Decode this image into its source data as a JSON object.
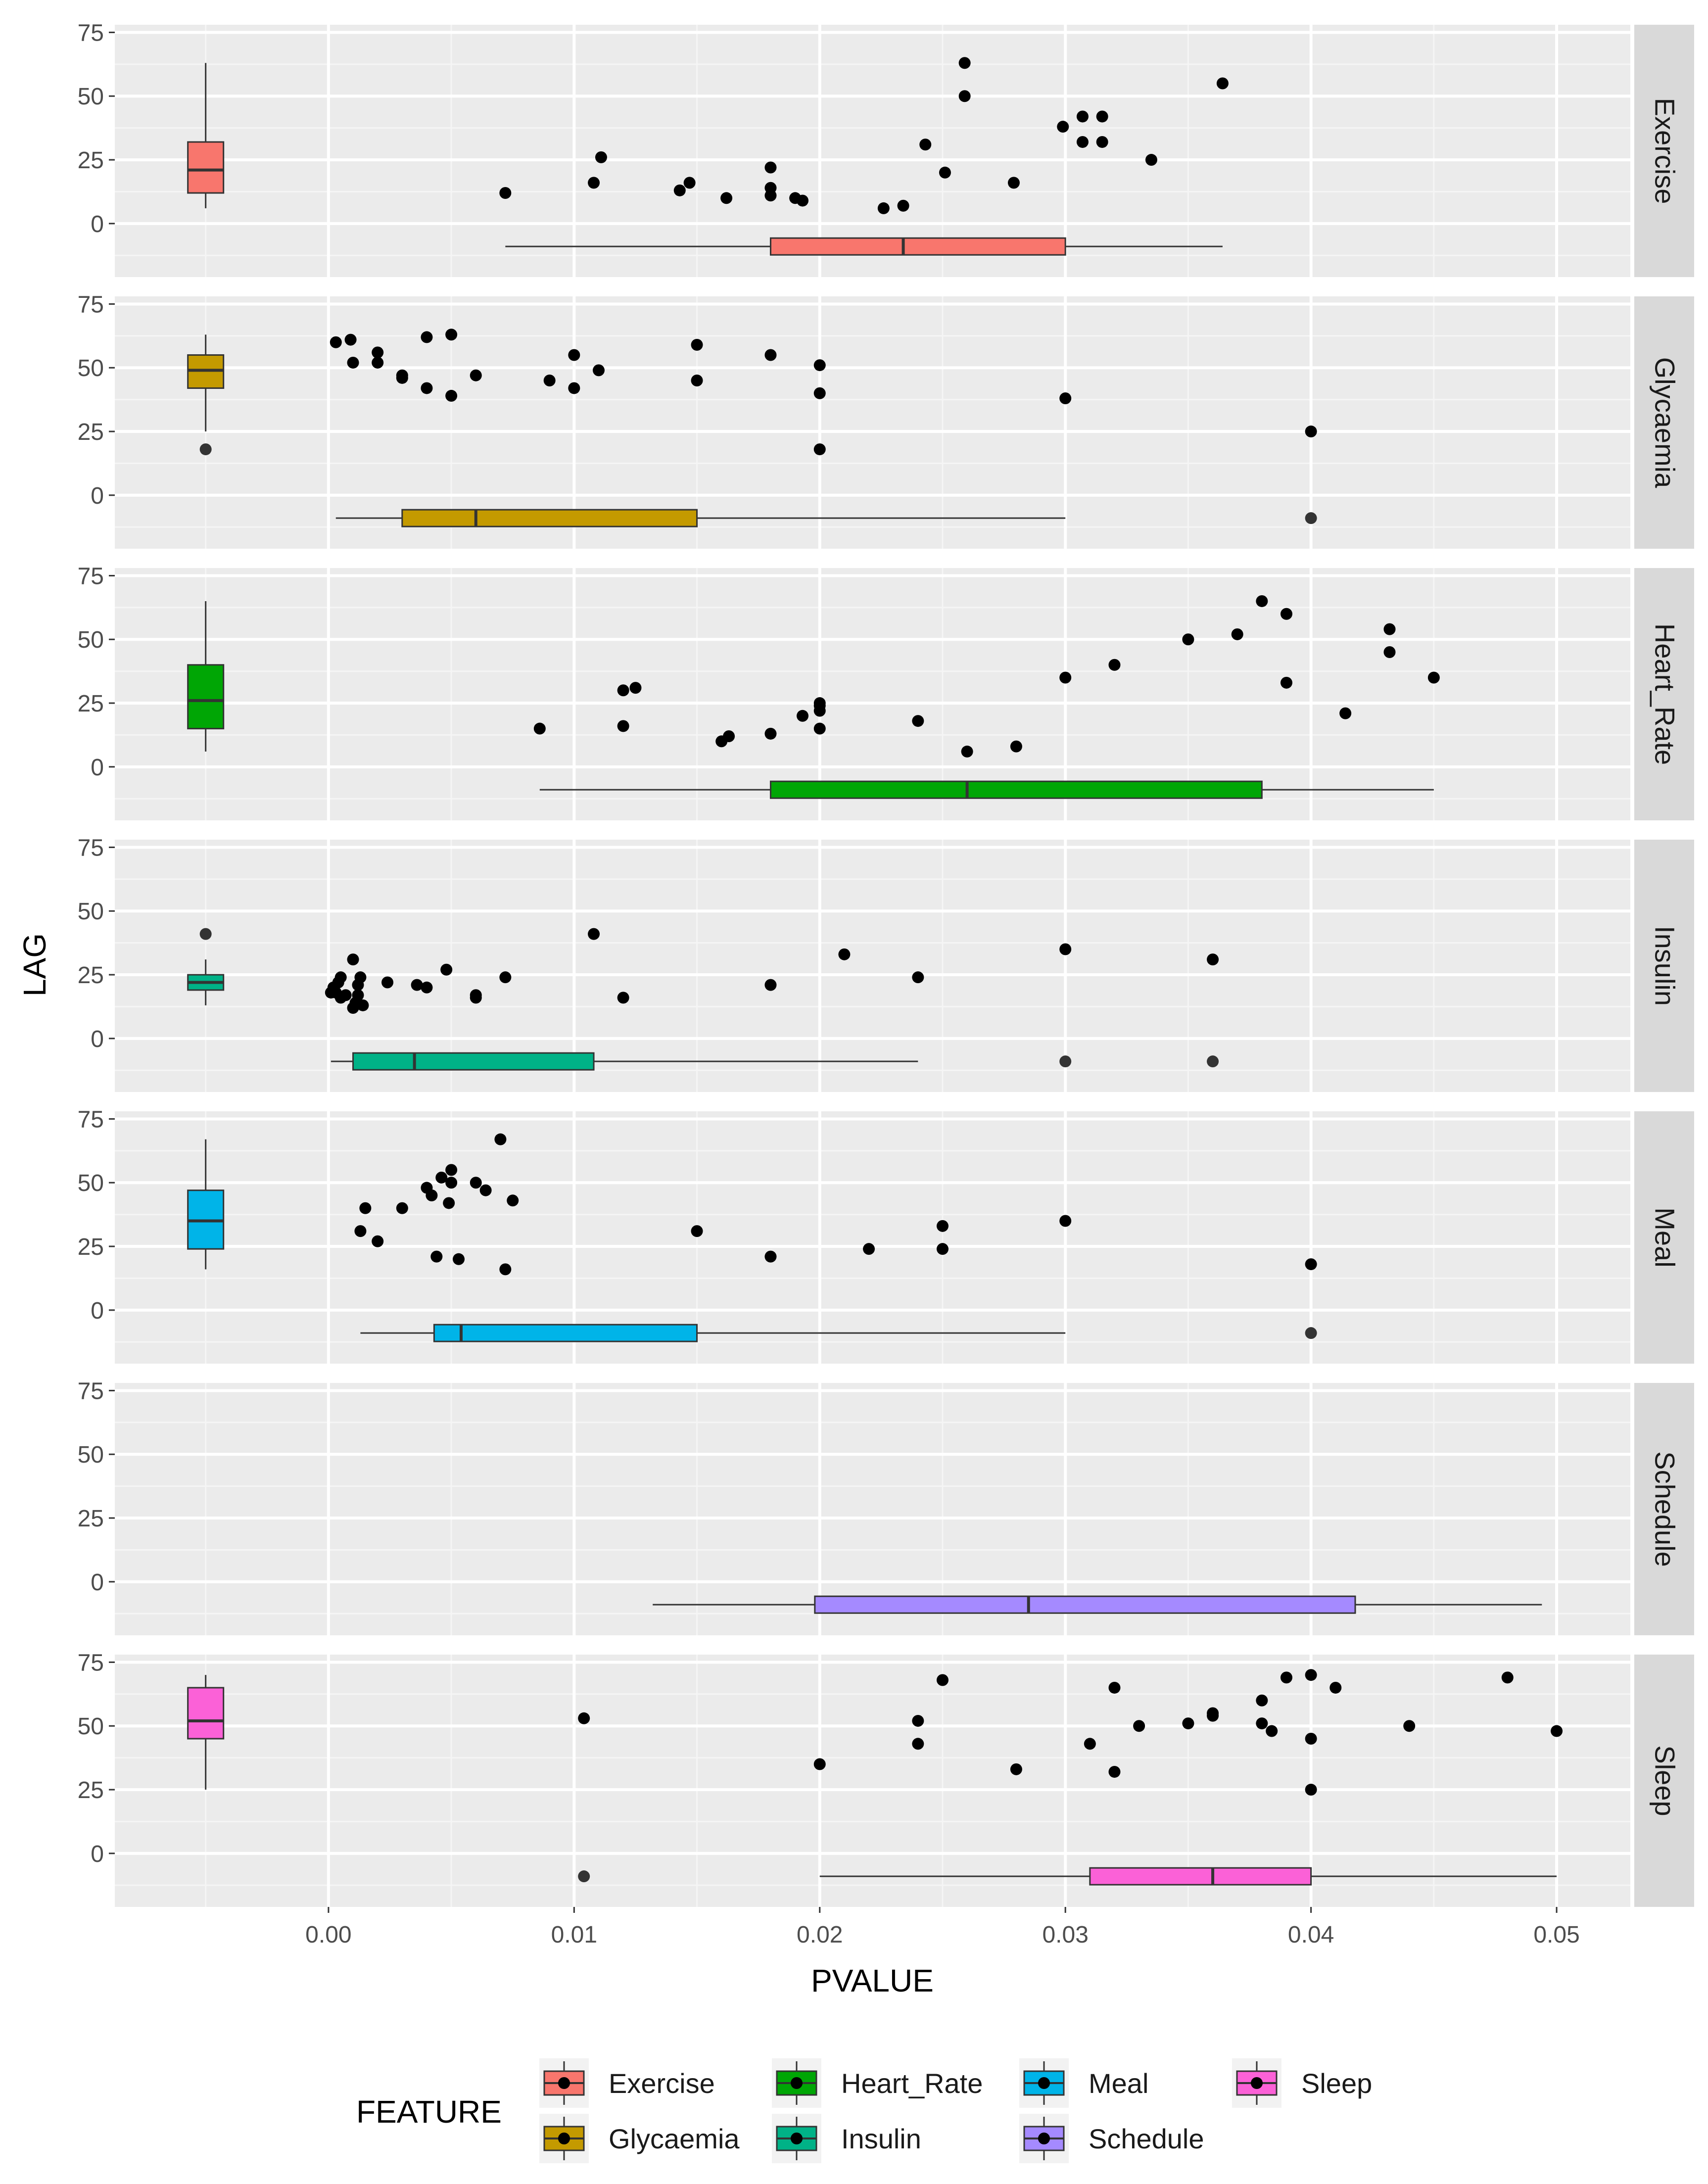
{
  "chart_data": {
    "type": "faceted-boxplot-scatter",
    "x_axis_label": "PVALUE",
    "y_axis_label": "LAG",
    "x_range": [
      -0.0087,
      0.053
    ],
    "x_ticks": [
      "0.00",
      "0.01",
      "0.02",
      "0.03",
      "0.04",
      "0.05"
    ],
    "x_tick_values": [
      0.0,
      0.01,
      0.02,
      0.03,
      0.04,
      0.05
    ],
    "y_range": [
      -21,
      78
    ],
    "y_ticks": [
      "0",
      "25",
      "50",
      "75"
    ],
    "y_tick_values": [
      0,
      25,
      50,
      75
    ],
    "legend_title": "FEATURE",
    "legend_position": "bottom",
    "legend_items": [
      {
        "label": "Exercise",
        "color": "#F8766D"
      },
      {
        "label": "Glycaemia",
        "color": "#C49A00"
      },
      {
        "label": "Heart_Rate",
        "color": "#00A605"
      },
      {
        "label": "Insulin",
        "color": "#00B287"
      },
      {
        "label": "Meal",
        "color": "#00B4E8"
      },
      {
        "label": "Schedule",
        "color": "#A58AFF"
      },
      {
        "label": "Sleep",
        "color": "#FB61D7"
      }
    ],
    "facets": [
      {
        "name": "Exercise",
        "color": "#F8766D",
        "lag_box": {
          "x": -0.005,
          "min": 6,
          "q1": 12,
          "median": 21,
          "q3": 32,
          "max": 63
        },
        "lag_outliers": [],
        "pvalue_box": {
          "y": -9,
          "min": 0.0072,
          "q1": 0.018,
          "median": 0.0234,
          "q3": 0.03,
          "max": 0.0364
        },
        "pvalue_outliers": [],
        "points": [
          [
            0.0072,
            12
          ],
          [
            0.0108,
            16
          ],
          [
            0.0111,
            26
          ],
          [
            0.0143,
            13
          ],
          [
            0.0147,
            16
          ],
          [
            0.0162,
            10
          ],
          [
            0.018,
            11
          ],
          [
            0.018,
            14
          ],
          [
            0.018,
            22
          ],
          [
            0.019,
            10
          ],
          [
            0.0193,
            9
          ],
          [
            0.0226,
            6
          ],
          [
            0.0234,
            7
          ],
          [
            0.0243,
            31
          ],
          [
            0.0251,
            20
          ],
          [
            0.0259,
            50
          ],
          [
            0.0259,
            63
          ],
          [
            0.0279,
            16
          ],
          [
            0.0299,
            38
          ],
          [
            0.0307,
            32
          ],
          [
            0.0307,
            42
          ],
          [
            0.0315,
            42
          ],
          [
            0.0315,
            32
          ],
          [
            0.0335,
            25
          ],
          [
            0.0364,
            55
          ]
        ]
      },
      {
        "name": "Glycaemia",
        "color": "#C49A00",
        "lag_box": {
          "x": -0.005,
          "min": 25,
          "q1": 42,
          "median": 49,
          "q3": 55,
          "max": 63
        },
        "lag_outliers": [
          18
        ],
        "pvalue_box": {
          "y": -9,
          "min": 0.0003,
          "q1": 0.003,
          "median": 0.006,
          "q3": 0.015,
          "max": 0.03
        },
        "pvalue_outliers": [
          0.04
        ],
        "points": [
          [
            0.0003,
            60
          ],
          [
            0.0009,
            61
          ],
          [
            0.001,
            52
          ],
          [
            0.002,
            56
          ],
          [
            0.002,
            52
          ],
          [
            0.003,
            47
          ],
          [
            0.003,
            46
          ],
          [
            0.004,
            62
          ],
          [
            0.004,
            42
          ],
          [
            0.005,
            63
          ],
          [
            0.005,
            39
          ],
          [
            0.006,
            47
          ],
          [
            0.009,
            45
          ],
          [
            0.01,
            55
          ],
          [
            0.01,
            42
          ],
          [
            0.011,
            49
          ],
          [
            0.015,
            59
          ],
          [
            0.015,
            45
          ],
          [
            0.018,
            55
          ],
          [
            0.02,
            51
          ],
          [
            0.02,
            40
          ],
          [
            0.02,
            18
          ],
          [
            0.03,
            38
          ],
          [
            0.04,
            25
          ]
        ]
      },
      {
        "name": "Heart_Rate",
        "color": "#00A605",
        "lag_box": {
          "x": -0.005,
          "min": 6,
          "q1": 15,
          "median": 26,
          "q3": 40,
          "max": 65
        },
        "lag_outliers": [],
        "pvalue_box": {
          "y": -9,
          "min": 0.0086,
          "q1": 0.018,
          "median": 0.026,
          "q3": 0.038,
          "max": 0.045
        },
        "pvalue_outliers": [],
        "points": [
          [
            0.0086,
            15
          ],
          [
            0.012,
            16
          ],
          [
            0.012,
            30
          ],
          [
            0.0125,
            31
          ],
          [
            0.016,
            10
          ],
          [
            0.0163,
            12
          ],
          [
            0.018,
            13
          ],
          [
            0.0193,
            20
          ],
          [
            0.02,
            15
          ],
          [
            0.02,
            22
          ],
          [
            0.02,
            24
          ],
          [
            0.02,
            25
          ],
          [
            0.024,
            18
          ],
          [
            0.026,
            6
          ],
          [
            0.028,
            8
          ],
          [
            0.03,
            35
          ],
          [
            0.032,
            40
          ],
          [
            0.035,
            50
          ],
          [
            0.037,
            52
          ],
          [
            0.038,
            65
          ],
          [
            0.039,
            33
          ],
          [
            0.039,
            60
          ],
          [
            0.0414,
            21
          ],
          [
            0.0432,
            54
          ],
          [
            0.0432,
            45
          ],
          [
            0.045,
            35
          ]
        ]
      },
      {
        "name": "Insulin",
        "color": "#00B287",
        "lag_box": {
          "x": -0.005,
          "min": 13,
          "q1": 19,
          "median": 22,
          "q3": 25,
          "max": 31
        },
        "lag_outliers": [
          41
        ],
        "pvalue_box": {
          "y": -9,
          "min": 0.0001,
          "q1": 0.001,
          "median": 0.0035,
          "q3": 0.0108,
          "max": 0.024
        },
        "pvalue_outliers": [
          0.03,
          0.036
        ],
        "points": [
          [
            0.0001,
            18
          ],
          [
            0.0002,
            20
          ],
          [
            0.0003,
            18
          ],
          [
            0.0004,
            22
          ],
          [
            0.0005,
            24
          ],
          [
            0.0005,
            16
          ],
          [
            0.0007,
            17
          ],
          [
            0.001,
            12
          ],
          [
            0.001,
            31
          ],
          [
            0.0011,
            14
          ],
          [
            0.0012,
            21
          ],
          [
            0.0012,
            17
          ],
          [
            0.0013,
            24
          ],
          [
            0.0014,
            13
          ],
          [
            0.0024,
            22
          ],
          [
            0.0036,
            21
          ],
          [
            0.004,
            20
          ],
          [
            0.0048,
            27
          ],
          [
            0.006,
            16
          ],
          [
            0.006,
            17
          ],
          [
            0.0072,
            24
          ],
          [
            0.0108,
            41
          ],
          [
            0.012,
            16
          ],
          [
            0.018,
            21
          ],
          [
            0.021,
            33
          ],
          [
            0.024,
            24
          ],
          [
            0.03,
            35
          ],
          [
            0.036,
            31
          ]
        ]
      },
      {
        "name": "Meal",
        "color": "#00B4E8",
        "lag_box": {
          "x": -0.005,
          "min": 16,
          "q1": 24,
          "median": 35,
          "q3": 47,
          "max": 67
        },
        "lag_outliers": [],
        "pvalue_box": {
          "y": -9,
          "min": 0.0013,
          "q1": 0.0043,
          "median": 0.0054,
          "q3": 0.015,
          "max": 0.03
        },
        "pvalue_outliers": [
          0.04
        ],
        "points": [
          [
            0.0013,
            31
          ],
          [
            0.0015,
            40
          ],
          [
            0.002,
            27
          ],
          [
            0.003,
            40
          ],
          [
            0.004,
            48
          ],
          [
            0.0042,
            45
          ],
          [
            0.0044,
            21
          ],
          [
            0.0046,
            52
          ],
          [
            0.0049,
            42
          ],
          [
            0.005,
            55
          ],
          [
            0.005,
            50
          ],
          [
            0.0053,
            20
          ],
          [
            0.006,
            50
          ],
          [
            0.0064,
            47
          ],
          [
            0.007,
            67
          ],
          [
            0.0072,
            16
          ],
          [
            0.0075,
            43
          ],
          [
            0.015,
            31
          ],
          [
            0.018,
            21
          ],
          [
            0.022,
            24
          ],
          [
            0.025,
            33
          ],
          [
            0.025,
            24
          ],
          [
            0.03,
            35
          ],
          [
            0.04,
            18
          ]
        ]
      },
      {
        "name": "Schedule",
        "color": "#A58AFF",
        "lag_box": null,
        "lag_outliers": [],
        "pvalue_box": {
          "y": -9,
          "min": 0.0132,
          "q1": 0.0198,
          "median": 0.0285,
          "q3": 0.0418,
          "max": 0.0494
        },
        "pvalue_outliers": [],
        "points": []
      },
      {
        "name": "Sleep",
        "color": "#FB61D7",
        "lag_box": {
          "x": -0.005,
          "min": 25,
          "q1": 45,
          "median": 52,
          "q3": 65,
          "max": 70
        },
        "lag_outliers": [],
        "pvalue_box": {
          "y": -9,
          "min": 0.02,
          "q1": 0.031,
          "median": 0.036,
          "q3": 0.04,
          "max": 0.05
        },
        "pvalue_outliers": [
          0.0104
        ],
        "points": [
          [
            0.0104,
            53
          ],
          [
            0.02,
            35
          ],
          [
            0.024,
            52
          ],
          [
            0.024,
            43
          ],
          [
            0.025,
            68
          ],
          [
            0.028,
            33
          ],
          [
            0.031,
            43
          ],
          [
            0.032,
            65
          ],
          [
            0.032,
            32
          ],
          [
            0.033,
            50
          ],
          [
            0.035,
            51
          ],
          [
            0.036,
            54
          ],
          [
            0.036,
            55
          ],
          [
            0.038,
            60
          ],
          [
            0.038,
            51
          ],
          [
            0.0384,
            48
          ],
          [
            0.039,
            69
          ],
          [
            0.04,
            70
          ],
          [
            0.04,
            45
          ],
          [
            0.04,
            25
          ],
          [
            0.041,
            65
          ],
          [
            0.044,
            50
          ],
          [
            0.048,
            69
          ],
          [
            0.05,
            48
          ]
        ]
      }
    ]
  }
}
